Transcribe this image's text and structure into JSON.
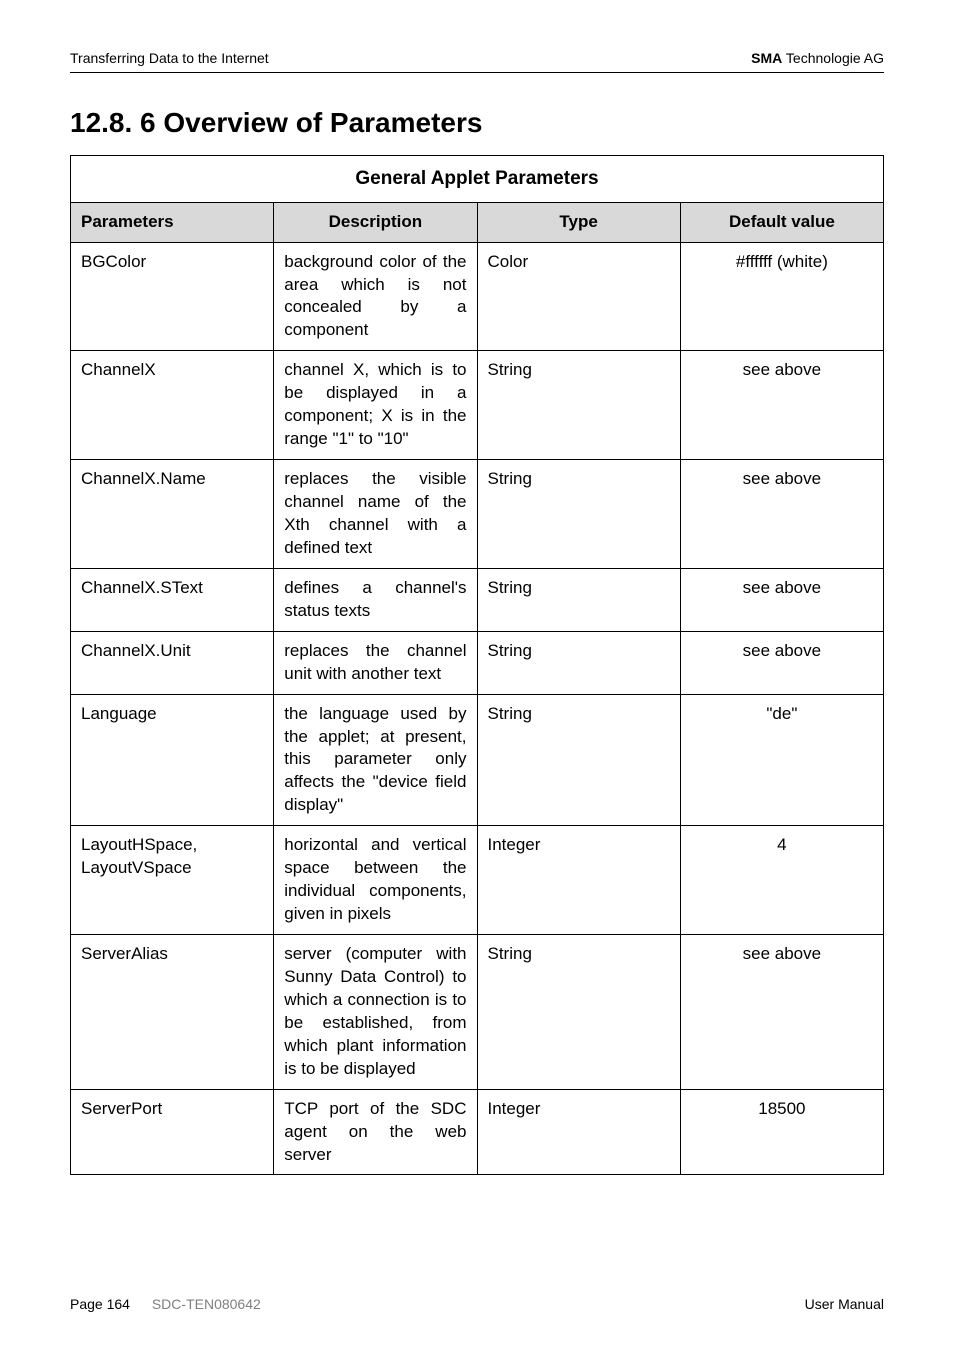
{
  "header": {
    "left": "Transferring Data to the Internet",
    "right_bold": "SMA",
    "right_rest": " Technologie AG"
  },
  "title": "12.8. 6 Overview of Parameters",
  "table": {
    "caption": "General Applet Parameters",
    "headers": {
      "parameters": "Parameters",
      "description": "Description",
      "type": "Type",
      "default": "Default value"
    },
    "rows": [
      {
        "param": "BGColor",
        "desc": "background color of the area which is not concealed by a component",
        "type": "Color",
        "default": "#ffffff (white)"
      },
      {
        "param": "ChannelX",
        "desc": "channel X, which is to be displayed in a component; X is in the range \"1\" to \"10\"",
        "type": "String",
        "default": "see above"
      },
      {
        "param": "ChannelX.Name",
        "desc": "replaces the visible channel name of the Xth channel with a defined text",
        "type": "String",
        "default": "see above"
      },
      {
        "param": "ChannelX.SText",
        "desc": "defines a channel's status texts",
        "type": "String",
        "default": "see above"
      },
      {
        "param": "ChannelX.Unit",
        "desc": "replaces the channel unit with another text",
        "type": "String",
        "default": "see above"
      },
      {
        "param": "Language",
        "desc": "the language used by the applet; at present, this parameter only affects the \"device field display\"",
        "type": "String",
        "default": "\"de\""
      },
      {
        "param": "LayoutHSpace, LayoutVSpace",
        "desc": "horizontal and vertical space between the individual components, given in pixels",
        "type": "Integer",
        "default": "4"
      },
      {
        "param": "ServerAlias",
        "desc": "server (computer with Sunny Data Control) to which a connection is to be established, from which plant information is to be displayed",
        "type": "String",
        "default": "see above"
      },
      {
        "param": "ServerPort",
        "desc": "TCP port of the SDC agent on the web server",
        "type": "Integer",
        "default": "18500"
      }
    ]
  },
  "footer": {
    "left_page": "Page 164",
    "left_code": "SDC-TEN080642",
    "right": "User Manual"
  }
}
